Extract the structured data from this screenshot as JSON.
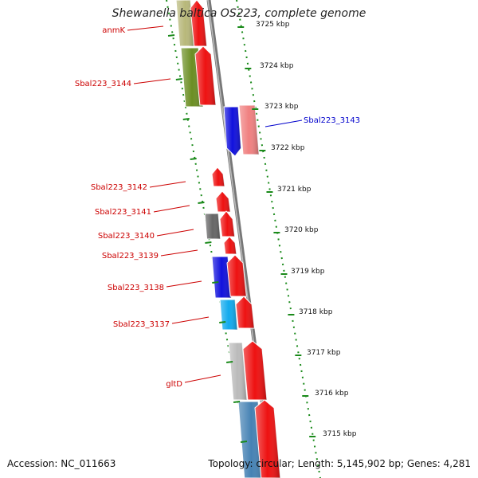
{
  "title": "Shewanella baltica OS223, complete genome",
  "footer": {
    "accession": "Accession: NC_011663",
    "summary": "Topology: circular; Length: 5,145,902 bp; Genes: 4,281"
  },
  "colors": {
    "label_red": "#cc0000",
    "label_blue": "#0000cc",
    "tick_green": "#1a8a1a",
    "backbone": "#888888"
  },
  "ticks": [
    {
      "label": "3725 kbp"
    },
    {
      "label": "3724 kbp"
    },
    {
      "label": "3723 kbp"
    },
    {
      "label": "3722 kbp"
    },
    {
      "label": "3721 kbp"
    },
    {
      "label": "3720 kbp"
    },
    {
      "label": "3719 kbp"
    },
    {
      "label": "3718 kbp"
    },
    {
      "label": "3717 kbp"
    },
    {
      "label": "3716 kbp"
    },
    {
      "label": "3715 kbp"
    }
  ],
  "gene_labels": [
    {
      "text": "anmK",
      "color": "#cc0000"
    },
    {
      "text": "Sbal223_3144",
      "color": "#cc0000"
    },
    {
      "text": "Sbal223_3143",
      "color": "#0000cc"
    },
    {
      "text": "Sbal223_3142",
      "color": "#cc0000"
    },
    {
      "text": "Sbal223_3141",
      "color": "#cc0000"
    },
    {
      "text": "Sbal223_3140",
      "color": "#cc0000"
    },
    {
      "text": "Sbal223_3139",
      "color": "#cc0000"
    },
    {
      "text": "Sbal223_3138",
      "color": "#cc0000"
    },
    {
      "text": "Sbal223_3137",
      "color": "#cc0000"
    },
    {
      "text": "gltD",
      "color": "#cc0000"
    }
  ],
  "features": [
    {
      "color": "#b8b87a"
    },
    {
      "color": "#ee1111"
    },
    {
      "color": "#6b8e23"
    },
    {
      "color": "#ee1111"
    },
    {
      "color": "#1010dd"
    },
    {
      "color": "#f08080"
    },
    {
      "color": "#ee1111"
    },
    {
      "color": "#ee1111"
    },
    {
      "color": "#666666"
    },
    {
      "color": "#ee1111"
    },
    {
      "color": "#ee1111"
    },
    {
      "color": "#1010dd"
    },
    {
      "color": "#ee1111"
    },
    {
      "color": "#11aaee"
    },
    {
      "color": "#ee1111"
    },
    {
      "color": "#bbbbbb"
    },
    {
      "color": "#ee1111"
    },
    {
      "color": "#4682b4"
    },
    {
      "color": "#ee1111"
    }
  ]
}
